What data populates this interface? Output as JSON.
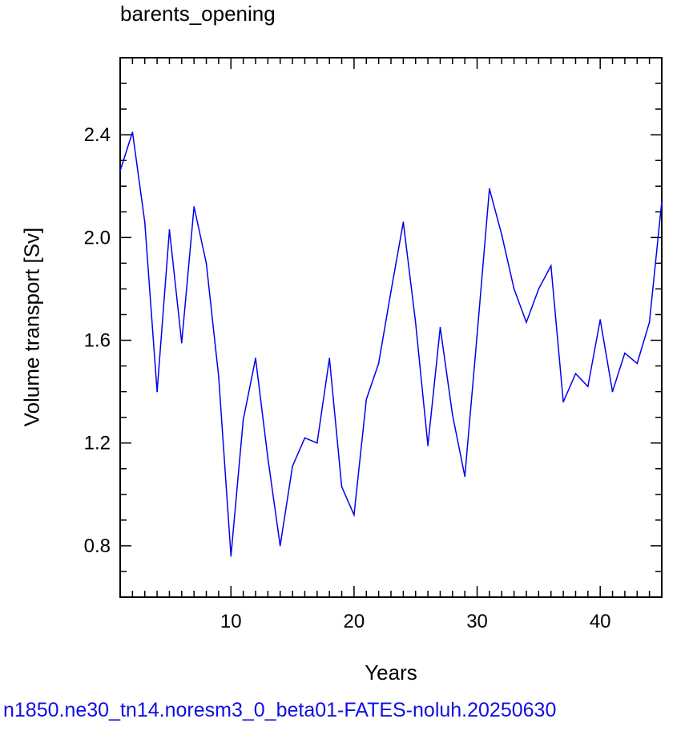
{
  "chart_data": {
    "type": "line",
    "title": "barents_opening",
    "xlabel": "Years",
    "ylabel": "Volume transport [Sv]",
    "caption": "n1850.ne30_tn14.noresm3_0_beta01-FATES-noluh.20250630",
    "xlim": [
      1,
      45
    ],
    "ylim": [
      0.6,
      2.7
    ],
    "xticks": [
      10,
      20,
      30,
      40
    ],
    "yticks": [
      0.8,
      1.2,
      1.6,
      2.0,
      2.4
    ],
    "ytick_labels": [
      "0.8",
      "1.2",
      "1.6",
      "2.0",
      "2.4"
    ],
    "line_color": "#0000ee",
    "series": [
      {
        "x": [
          1,
          2,
          3,
          4,
          5,
          6,
          7,
          8,
          9,
          10,
          11,
          12,
          13,
          14,
          15,
          16,
          17,
          18,
          19,
          20,
          21,
          22,
          23,
          24,
          25,
          26,
          27,
          28,
          29,
          30,
          31,
          32,
          33,
          34,
          35,
          36,
          37,
          38,
          39,
          40,
          41,
          42,
          43,
          44,
          45
        ],
        "values": [
          2.26,
          2.41,
          2.06,
          1.4,
          2.03,
          1.59,
          2.12,
          1.9,
          1.46,
          0.76,
          1.29,
          1.53,
          1.14,
          0.8,
          1.11,
          1.22,
          1.2,
          1.53,
          1.03,
          0.92,
          1.37,
          1.51,
          1.79,
          2.06,
          1.67,
          1.19,
          1.65,
          1.31,
          1.07,
          1.62,
          2.19,
          2.01,
          1.8,
          1.67,
          1.8,
          1.89,
          1.36,
          1.47,
          1.42,
          1.68,
          1.4,
          1.55,
          1.51,
          1.67,
          2.14
        ]
      }
    ]
  }
}
